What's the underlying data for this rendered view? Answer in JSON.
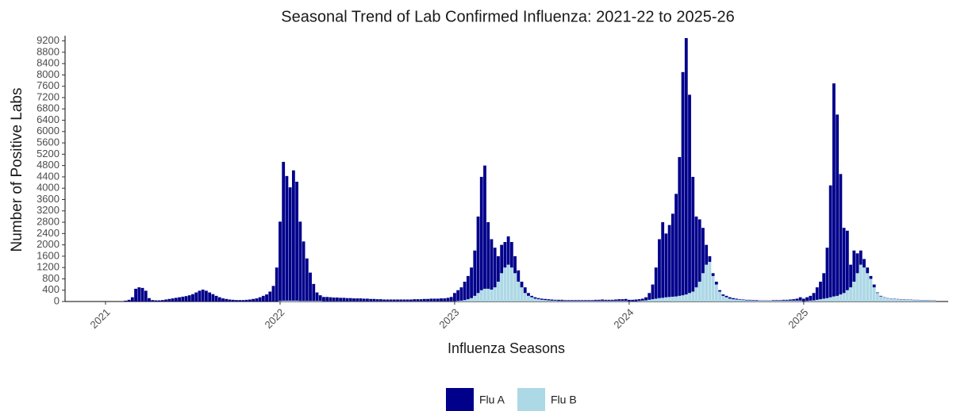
{
  "chart_data": {
    "type": "bar",
    "stacked": true,
    "title": "Seasonal Trend of Lab Confirmed Influenza: 2021-22 to 2025-26",
    "x_label": "Influenza Seasons",
    "y_label": "Number of Positive Labs",
    "categories": [
      "2021",
      null,
      null,
      null,
      null,
      null,
      null,
      null,
      null,
      null,
      null,
      null,
      null,
      null,
      null,
      null,
      null,
      null,
      null,
      null,
      null,
      null,
      null,
      null,
      null,
      null,
      null,
      null,
      null,
      null,
      null,
      null,
      null,
      null,
      null,
      null,
      null,
      null,
      null,
      null,
      null,
      null,
      null,
      null,
      null,
      null,
      null,
      null,
      null,
      null,
      null,
      null,
      "2022",
      null,
      null,
      null,
      null,
      null,
      null,
      null,
      null,
      null,
      null,
      null,
      null,
      null,
      null,
      null,
      null,
      null,
      null,
      null,
      null,
      null,
      null,
      null,
      null,
      null,
      null,
      null,
      null,
      null,
      null,
      null,
      null,
      null,
      null,
      null,
      null,
      null,
      null,
      null,
      null,
      null,
      null,
      null,
      null,
      null,
      null,
      null,
      null,
      null,
      null,
      null,
      "2023",
      null,
      null,
      null,
      null,
      null,
      null,
      null,
      null,
      null,
      null,
      null,
      null,
      null,
      null,
      null,
      null,
      null,
      null,
      null,
      null,
      null,
      null,
      null,
      null,
      null,
      null,
      null,
      null,
      null,
      null,
      null,
      null,
      null,
      null,
      null,
      null,
      null,
      null,
      null,
      null,
      null,
      null,
      null,
      null,
      null,
      null,
      null,
      null,
      null,
      null,
      null,
      "2024",
      null,
      null,
      null,
      null,
      null,
      null,
      null,
      null,
      null,
      null,
      null,
      null,
      null,
      null,
      null,
      null,
      null,
      null,
      null,
      null,
      null,
      null,
      null,
      null,
      null,
      null,
      null,
      null,
      null,
      null,
      null,
      null,
      null,
      null,
      null,
      null,
      null,
      null,
      null,
      null,
      null,
      null,
      null,
      null,
      null,
      null,
      null,
      null,
      null,
      null,
      null,
      "2025",
      null,
      null,
      null,
      null,
      null,
      null,
      null,
      null,
      null,
      null,
      null,
      null,
      null,
      null,
      null,
      null,
      null,
      null,
      null,
      null,
      null,
      null,
      null,
      null,
      null,
      null,
      null,
      null,
      null,
      null,
      null,
      null,
      null,
      null,
      null,
      null,
      null,
      null,
      null
    ],
    "series": [
      {
        "name": "Flu A",
        "color": "#00008b",
        "values": [
          0,
          0,
          0,
          0,
          5,
          10,
          30,
          60,
          150,
          450,
          500,
          480,
          380,
          120,
          50,
          40,
          40,
          50,
          70,
          90,
          110,
          130,
          150,
          170,
          190,
          220,
          260,
          320,
          380,
          420,
          380,
          320,
          260,
          200,
          150,
          110,
          90,
          70,
          60,
          50,
          50,
          50,
          60,
          70,
          90,
          110,
          150,
          200,
          250,
          350,
          550,
          1200,
          2800,
          4900,
          4400,
          4000,
          4600,
          4200,
          2800,
          2100,
          1500,
          1000,
          600,
          300,
          200,
          150,
          150,
          140,
          130,
          130,
          120,
          120,
          110,
          110,
          100,
          100,
          100,
          90,
          90,
          80,
          80,
          70,
          70,
          60,
          60,
          60,
          60,
          60,
          60,
          60,
          60,
          60,
          70,
          70,
          70,
          80,
          80,
          90,
          90,
          90,
          100,
          100,
          120,
          150,
          290,
          380,
          470,
          650,
          820,
          1080,
          1600,
          2700,
          4000,
          4350,
          2350,
          1780,
          1400,
          900,
          1000,
          900,
          1000,
          900,
          600,
          400,
          200,
          200,
          100,
          50,
          50,
          40,
          40,
          40,
          40,
          40,
          30,
          40,
          40,
          30,
          30,
          30,
          30,
          30,
          30,
          30,
          30,
          30,
          40,
          40,
          50,
          40,
          40,
          40,
          50,
          60,
          60,
          70,
          50,
          50,
          60,
          60,
          70,
          110,
          240,
          520,
          1100,
          2080,
          2670,
          2250,
          2540,
          2930,
          3620,
          4900,
          7880,
          9050,
          7000,
          4050,
          2500,
          2200,
          1600,
          700,
          200,
          100,
          100,
          50,
          50,
          50,
          50,
          40,
          30,
          20,
          20,
          20,
          20,
          20,
          20,
          10,
          10,
          10,
          10,
          20,
          20,
          20,
          30,
          30,
          40,
          50,
          70,
          120,
          90,
          130,
          170,
          260,
          440,
          620,
          900,
          1780,
          3950,
          7520,
          6400,
          4250,
          2300,
          2100,
          800,
          1100,
          700,
          500,
          300,
          200,
          100,
          100,
          20,
          20,
          10,
          10,
          10,
          10,
          10,
          10,
          10,
          10,
          10,
          10,
          10,
          10,
          10,
          10,
          10,
          10
        ]
      },
      {
        "name": "Flu B",
        "color": "#add8e6",
        "values": [
          0,
          0,
          0,
          0,
          0,
          0,
          0,
          0,
          0,
          0,
          0,
          0,
          0,
          0,
          0,
          0,
          0,
          0,
          0,
          0,
          0,
          0,
          0,
          0,
          0,
          0,
          0,
          0,
          0,
          0,
          0,
          0,
          0,
          0,
          0,
          0,
          0,
          0,
          0,
          0,
          0,
          0,
          0,
          0,
          0,
          0,
          0,
          0,
          0,
          0,
          0,
          0,
          20,
          30,
          30,
          30,
          30,
          30,
          20,
          20,
          20,
          20,
          20,
          20,
          20,
          10,
          10,
          10,
          10,
          10,
          10,
          10,
          10,
          10,
          10,
          10,
          10,
          10,
          10,
          10,
          10,
          10,
          10,
          10,
          10,
          10,
          10,
          10,
          10,
          10,
          10,
          10,
          10,
          10,
          10,
          10,
          10,
          10,
          10,
          10,
          10,
          10,
          10,
          10,
          10,
          20,
          30,
          50,
          80,
          120,
          200,
          300,
          400,
          450,
          450,
          420,
          500,
          700,
          1000,
          1200,
          1300,
          1200,
          1000,
          700,
          500,
          300,
          200,
          150,
          100,
          80,
          60,
          50,
          40,
          30,
          30,
          20,
          20,
          20,
          20,
          20,
          20,
          20,
          20,
          20,
          20,
          20,
          20,
          20,
          20,
          20,
          20,
          20,
          20,
          20,
          20,
          20,
          10,
          10,
          10,
          20,
          30,
          40,
          60,
          80,
          100,
          120,
          130,
          150,
          160,
          170,
          180,
          200,
          220,
          250,
          300,
          350,
          500,
          700,
          1000,
          1300,
          1400,
          900,
          600,
          350,
          200,
          150,
          100,
          80,
          70,
          60,
          50,
          40,
          40,
          30,
          30,
          30,
          30,
          30,
          30,
          30,
          30,
          30,
          30,
          30,
          30,
          30,
          30,
          30,
          10,
          20,
          30,
          40,
          60,
          80,
          100,
          120,
          150,
          180,
          200,
          250,
          300,
          400,
          500,
          700,
          1000,
          1300,
          1200,
          1000,
          800,
          500,
          300,
          180,
          140,
          110,
          90,
          90,
          80,
          70,
          70,
          60,
          60,
          50,
          50,
          40,
          40,
          40,
          30,
          30
        ]
      }
    ],
    "ylim": [
      0,
      9300
    ],
    "yticks": [
      0,
      400,
      800,
      1200,
      1600,
      2000,
      2400,
      2800,
      3200,
      3600,
      4000,
      4400,
      4800,
      5200,
      5600,
      6000,
      6400,
      6800,
      7200,
      7600,
      8000,
      8400,
      8800,
      9200
    ],
    "grid": false,
    "legend": "bottom"
  }
}
